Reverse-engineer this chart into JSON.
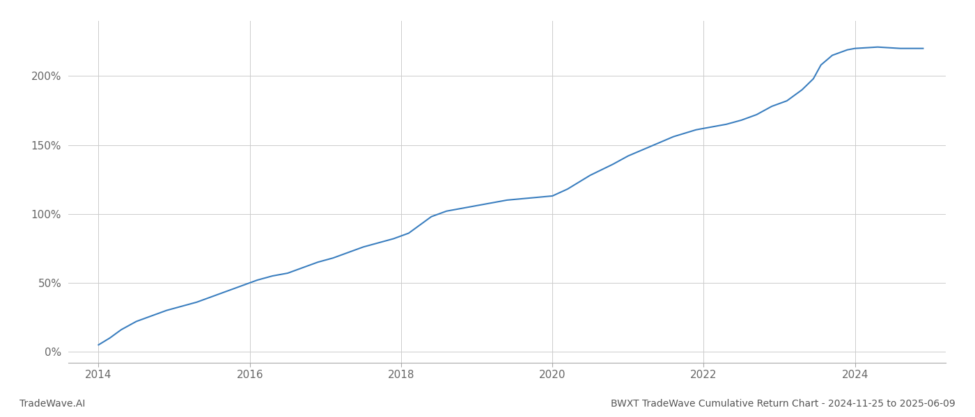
{
  "title": "BWXT TradeWave Cumulative Return Chart - 2024-11-25 to 2025-06-09",
  "watermark_left": "TradeWave.AI",
  "line_color": "#3a7ebf",
  "line_width": 1.5,
  "background_color": "#ffffff",
  "grid_color": "#cccccc",
  "x_ticks": [
    2014,
    2016,
    2018,
    2020,
    2022,
    2024
  ],
  "y_ticks": [
    0,
    50,
    100,
    150,
    200
  ],
  "xlim": [
    2013.6,
    2025.2
  ],
  "ylim": [
    -8,
    240
  ],
  "data_x": [
    2014.0,
    2014.15,
    2014.3,
    2014.5,
    2014.7,
    2014.9,
    2015.1,
    2015.3,
    2015.5,
    2015.7,
    2015.9,
    2016.1,
    2016.3,
    2016.5,
    2016.7,
    2016.9,
    2017.1,
    2017.3,
    2017.5,
    2017.7,
    2017.9,
    2018.1,
    2018.25,
    2018.4,
    2018.6,
    2018.8,
    2019.0,
    2019.2,
    2019.4,
    2019.6,
    2019.8,
    2020.0,
    2020.2,
    2020.5,
    2020.8,
    2021.0,
    2021.3,
    2021.6,
    2021.9,
    2022.1,
    2022.3,
    2022.5,
    2022.7,
    2022.9,
    2023.1,
    2023.3,
    2023.45,
    2023.55,
    2023.7,
    2023.9,
    2024.0,
    2024.3,
    2024.6,
    2024.9
  ],
  "data_y": [
    5,
    10,
    16,
    22,
    26,
    30,
    33,
    36,
    40,
    44,
    48,
    52,
    55,
    57,
    61,
    65,
    68,
    72,
    76,
    79,
    82,
    86,
    92,
    98,
    102,
    104,
    106,
    108,
    110,
    111,
    112,
    113,
    118,
    128,
    136,
    142,
    149,
    156,
    161,
    163,
    165,
    168,
    172,
    178,
    182,
    190,
    198,
    208,
    215,
    219,
    220,
    221,
    220,
    220
  ]
}
